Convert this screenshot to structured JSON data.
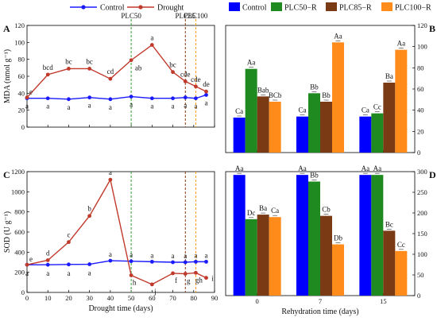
{
  "legends": {
    "left": [
      {
        "name": "Control",
        "color": "#1a1aff",
        "marker": "circle"
      },
      {
        "name": "Drought",
        "color": "#c0392b",
        "marker": "circle"
      }
    ],
    "right": [
      {
        "name": "Control",
        "color": "#0000ff"
      },
      {
        "name": "PLC50−R",
        "color": "#1f8a1f"
      },
      {
        "name": "PLC85−R",
        "color": "#7a3b14"
      },
      {
        "name": "PLC100−R",
        "color": "#ff8c1a"
      }
    ]
  },
  "colors": {
    "control": "#1a1aff",
    "drought": "#c0392b",
    "plc50_line": "#2ea12e",
    "plc85_line": "#8b3a0e",
    "plc100_line": "#ff9900"
  },
  "chart_data": [
    {
      "panel": "A",
      "type": "line",
      "ylabel": "MDA (nmol g⁻¹)",
      "xlabel": "",
      "xlim": [
        0,
        90
      ],
      "ylim": [
        0,
        120
      ],
      "xticks": [
        0,
        10,
        20,
        30,
        40,
        50,
        60,
        70,
        80,
        90
      ],
      "yticks": [
        0,
        20,
        40,
        60,
        80,
        100,
        120
      ],
      "grid": false,
      "vlines": [
        {
          "x": 50,
          "label": "PLC50",
          "color": "#2ea12e"
        },
        {
          "x": 76,
          "label": "PLC85",
          "color": "#8b3a0e"
        },
        {
          "x": 81,
          "label": "PLC100",
          "color": "#ff9900"
        }
      ],
      "series": [
        {
          "name": "Control",
          "x": [
            0,
            10,
            20,
            30,
            40,
            50,
            60,
            70,
            76,
            81,
            86
          ],
          "y": [
            34,
            34,
            33,
            35,
            33,
            36,
            34,
            34,
            35,
            34,
            38
          ],
          "labels": [
            "a",
            "a",
            "a",
            "a",
            "a",
            "a",
            "a",
            "a",
            "a",
            "a",
            "a"
          ]
        },
        {
          "name": "Drought",
          "x": [
            0,
            10,
            20,
            30,
            40,
            50,
            60,
            70,
            76,
            81,
            86
          ],
          "y": [
            35,
            62,
            69,
            69,
            57,
            79,
            97,
            65,
            54,
            48,
            42
          ],
          "labels": [
            "e",
            "bcd",
            "bc",
            "bc",
            "cd",
            "ab",
            "a",
            "bc",
            "cde",
            "cde",
            "de"
          ]
        }
      ]
    },
    {
      "panel": "B",
      "type": "bar",
      "categories": [
        "0",
        "7",
        "15"
      ],
      "xlabel": "",
      "ylim": [
        0,
        120
      ],
      "yticks": [
        0,
        20,
        40,
        60,
        80,
        100,
        120
      ],
      "grid": false,
      "series": [
        {
          "name": "Control",
          "values": [
            33,
            34,
            34
          ],
          "labels": [
            "Ca",
            "Ca",
            "Ca"
          ]
        },
        {
          "name": "PLC50−R",
          "values": [
            79,
            56,
            37
          ],
          "labels": [
            "Aa",
            "Bb",
            "Cc"
          ]
        },
        {
          "name": "PLC85−R",
          "values": [
            53,
            48,
            66
          ],
          "labels": [
            "Bab",
            "Bb",
            "Ba"
          ]
        },
        {
          "name": "PLC100−R",
          "values": [
            48,
            104,
            97
          ],
          "labels": [
            "BCb",
            "Aa",
            "Aa"
          ]
        }
      ]
    },
    {
      "panel": "C",
      "type": "line",
      "ylabel": "SOD (U g⁻¹)",
      "xlabel": "Drought time (days)",
      "xlim": [
        0,
        90
      ],
      "ylim": [
        0,
        1200
      ],
      "xticks": [
        0,
        10,
        20,
        30,
        40,
        50,
        60,
        70,
        80,
        90
      ],
      "yticks": [
        0,
        200,
        400,
        600,
        800,
        1000,
        1200
      ],
      "grid": false,
      "vlines": [
        {
          "x": 50,
          "color": "#2ea12e"
        },
        {
          "x": 76,
          "color": "#8b3a0e"
        },
        {
          "x": 81,
          "color": "#ff9900"
        }
      ],
      "series": [
        {
          "name": "Control",
          "x": [
            0,
            10,
            20,
            30,
            40,
            50,
            60,
            70,
            76,
            81,
            86
          ],
          "y": [
            275,
            275,
            278,
            280,
            315,
            310,
            305,
            300,
            300,
            305,
            305
          ],
          "labels": [
            "a",
            "a",
            "a",
            "a",
            "a",
            "a",
            "a",
            "a",
            "a",
            "a",
            "a"
          ]
        },
        {
          "name": "Drought",
          "x": [
            0,
            10,
            20,
            30,
            40,
            50,
            60,
            70,
            76,
            81,
            86
          ],
          "y": [
            275,
            320,
            500,
            760,
            1120,
            170,
            80,
            190,
            185,
            195,
            145
          ],
          "labels": [
            "e",
            "d",
            "c",
            "b",
            "a",
            "h",
            "j",
            "f",
            "g",
            "gh",
            "i"
          ]
        }
      ]
    },
    {
      "panel": "D",
      "type": "bar",
      "categories": [
        "0",
        "7",
        "15"
      ],
      "xlabel": "Rehydration time (days)",
      "ylim": [
        0,
        300
      ],
      "yticks": [
        0,
        50,
        100,
        150,
        200,
        250,
        300
      ],
      "grid": false,
      "series": [
        {
          "name": "Control",
          "values": [
            292,
            292,
            292
          ],
          "labels": [
            "Aa",
            "Aa",
            "Aa"
          ]
        },
        {
          "name": "PLC50−R",
          "values": [
            185,
            276,
            292
          ],
          "labels": [
            "Dc",
            "Bb",
            "Aa"
          ]
        },
        {
          "name": "PLC85−R",
          "values": [
            196,
            193,
            157
          ],
          "labels": [
            "Ba",
            "Cb",
            "Bc"
          ]
        },
        {
          "name": "PLC100−R",
          "values": [
            190,
            124,
            108
          ],
          "labels": [
            "Ca",
            "Db",
            "Cc"
          ]
        }
      ]
    }
  ]
}
